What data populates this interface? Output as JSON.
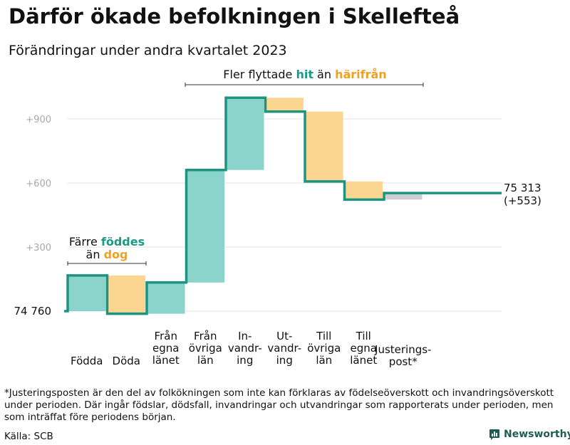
{
  "title": "Därför ökade befolkningen i Skellefteå",
  "subtitle": "Förändringar under andra kvartalet 2023",
  "footnote": "*Justeringsposten är den del av folkökningen som inte kan förklaras av födelseöverskott och invandringsöverskott under perioden. Där ingår födslar, dödsfall, invandringar och utvandringar som rapporterats under perioden, men som inträffat före periodens början.",
  "source": "Källa: SCB",
  "logo": "Newsworthy",
  "colors": {
    "line": "#1d9382",
    "teal": "#8ad4cb",
    "orange": "#fcd590",
    "gray": "#cfcfcf",
    "grid": "#e3e3e3",
    "accent_teal": "#1a9a86",
    "accent_orange": "#f0a11e"
  },
  "annotations": {
    "births": {
      "line1_pre": "Färre ",
      "line1_hl": "föddes",
      "line2_pre": "än ",
      "line2_hl": "dog"
    },
    "migration": {
      "pre": "Fler flyttade ",
      "hl1": "hit",
      "mid": " än ",
      "hl2": "härifrån"
    }
  },
  "chart_data": {
    "type": "waterfall",
    "title": "Därför ökade befolkningen i Skellefteå",
    "subtitle": "Förändringar under andra kvartalet 2023",
    "baseline": 74760,
    "baseline_label": "74  760",
    "end_value_label": "75 313",
    "end_change_label": "(+553)",
    "y_ticks": [
      {
        "value": 300,
        "label": "+300"
      },
      {
        "value": 600,
        "label": "+600"
      },
      {
        "value": 900,
        "label": "+900"
      }
    ],
    "ylim": [
      0,
      1000
    ],
    "steps": [
      {
        "category": [
          "Födda"
        ],
        "change": 167,
        "color": "teal",
        "group": "births"
      },
      {
        "category": [
          "Döda"
        ],
        "change": -179,
        "color": "orange",
        "group": "births"
      },
      {
        "category": [
          "Från",
          "egna",
          "länet"
        ],
        "change": 146,
        "color": "teal",
        "group": "migration"
      },
      {
        "category": [
          "Från",
          "övriga",
          "län"
        ],
        "change": 527,
        "color": "teal",
        "group": "migration"
      },
      {
        "category": [
          "In-",
          "vandr-",
          "ing"
        ],
        "change": 338,
        "color": "teal",
        "group": "migration"
      },
      {
        "category": [
          "Ut-",
          "vandr-",
          "ing"
        ],
        "change": -65,
        "color": "orange",
        "group": "migration"
      },
      {
        "category": [
          "Till",
          "övriga",
          "län"
        ],
        "change": -327,
        "color": "orange",
        "group": "migration"
      },
      {
        "category": [
          "Till",
          "egna",
          "länet"
        ],
        "change": -85,
        "color": "orange",
        "group": "migration"
      },
      {
        "category": [
          "Justerings-",
          "post*"
        ],
        "change": 31,
        "color": "gray",
        "group": "adjustment"
      }
    ]
  }
}
